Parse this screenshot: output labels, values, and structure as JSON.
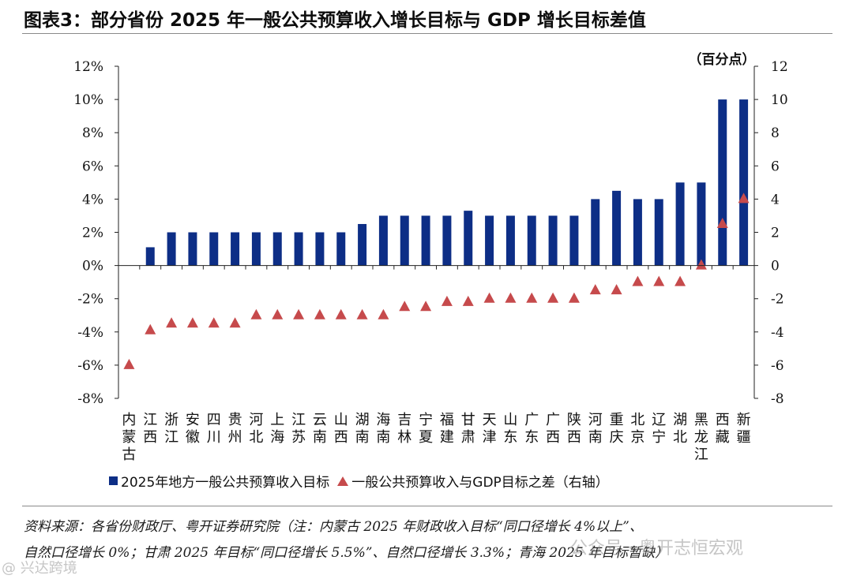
{
  "title": "图表3：部分省份 2025 年一般公共预算收入增长目标与 GDP 增长目标差值",
  "right_axis_unit": "（百分点）",
  "chart_data": {
    "type": "bar",
    "categories": [
      "内蒙古",
      "江西",
      "浙江",
      "安徽",
      "四川",
      "贵州",
      "河北",
      "上海",
      "江苏",
      "云南",
      "山西",
      "湖南",
      "海南",
      "吉林",
      "宁夏",
      "福建",
      "甘肃",
      "天津",
      "山东",
      "广东",
      "广西",
      "陕西",
      "河南",
      "重庆",
      "北京",
      "辽宁",
      "湖北",
      "黑龙江",
      "西藏",
      "新疆"
    ],
    "series": [
      {
        "name": "2025年地方一般公共预算收入目标",
        "type": "bar",
        "axis": "left",
        "color": "#0d2e86",
        "values": [
          null,
          1.1,
          2,
          2,
          2,
          2,
          2,
          2,
          2,
          2,
          2,
          2.5,
          3,
          3,
          3,
          3,
          3.3,
          3,
          3,
          3,
          3,
          3,
          4,
          4.5,
          4,
          4,
          5,
          5,
          10,
          10
        ]
      },
      {
        "name": "一般公共预算收入与GDP目标之差（右轴）",
        "type": "scatter",
        "marker": "triangle",
        "axis": "right",
        "color": "#c64a4c",
        "values": [
          -6,
          -3.9,
          -3.5,
          -3.5,
          -3.5,
          -3.5,
          -3,
          -3,
          -3,
          -3,
          -3,
          -3,
          -3,
          -2.5,
          -2.5,
          -2.2,
          -2.2,
          -2,
          -2,
          -2,
          -2,
          -2,
          -1.5,
          -1.5,
          -1,
          -1,
          -1,
          0,
          2.5,
          4
        ]
      }
    ],
    "left_axis": {
      "ylim": [
        -8,
        12
      ],
      "ticks": [
        "12%",
        "10%",
        "8%",
        "6%",
        "4%",
        "2%",
        "0%",
        "-2%",
        "-4%",
        "-6%",
        "-8%"
      ]
    },
    "right_axis": {
      "ylim": [
        -8,
        12
      ],
      "ticks": [
        "12",
        "10",
        "8",
        "6",
        "4",
        "2",
        "0",
        "-2",
        "-4",
        "-6",
        "-8"
      ]
    },
    "legend_placement": "bottom"
  },
  "legend": {
    "bar_label": "2025年地方一般公共预算收入目标",
    "marker_label": "一般公共预算收入与GDP目标之差（右轴）"
  },
  "source": {
    "line1": "资料来源：各省份财政厅、粤开证券研究院（注：内蒙古 2025 年财政收入目标“同口径增长 4%以上”、",
    "line2": "自然口径增长 0%；甘肃 2025 年目标“同口径增长 5.5%”、自然口径增长 3.3%；青海 2025 年目标暂缺）"
  },
  "watermark": {
    "right": "公众号 · 粤开志恒宏观",
    "left": "@ 兴达跨境"
  }
}
